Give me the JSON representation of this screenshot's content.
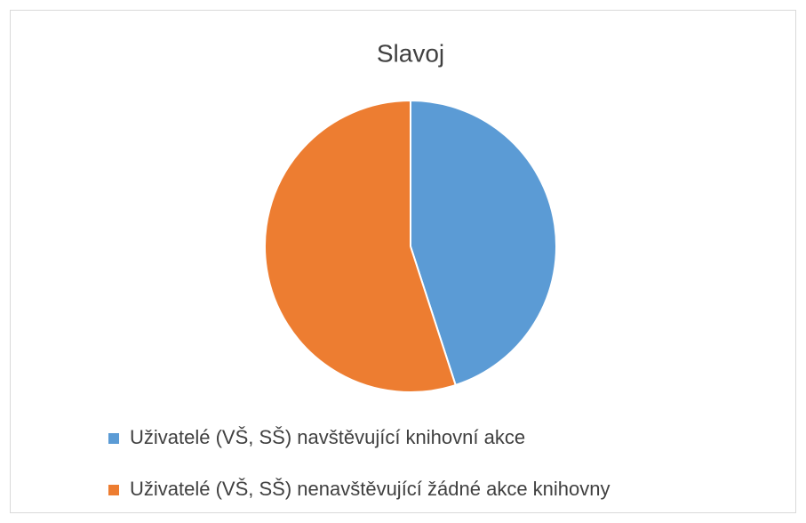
{
  "chart_data": {
    "type": "pie",
    "title": "Slavoj",
    "categories": [
      "Uživatelé (VŠ, SŠ) navštěvující knihovní akce",
      "Uživatelé (VŠ, SŠ) nenavštěvující žádné akce knihovny"
    ],
    "values": [
      45,
      55
    ],
    "colors": [
      "#5b9bd5",
      "#ed7d31"
    ],
    "legend": "bottom"
  }
}
